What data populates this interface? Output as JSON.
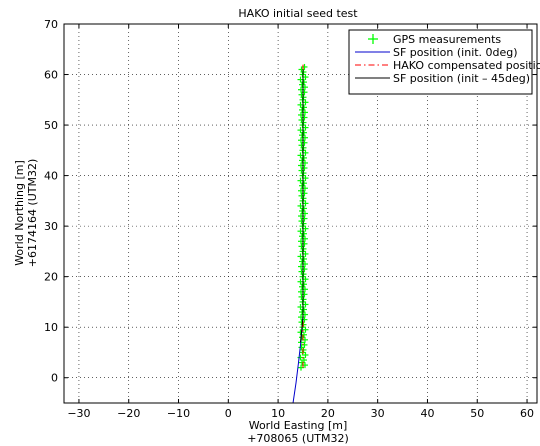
{
  "chart_data": {
    "type": "line",
    "title": "HAKO initial seed test",
    "xlabel": "World Easting [m]",
    "xlabel2": "+708065  (UTM32)",
    "ylabel": "World Northing [m]",
    "ylabel2": "+6174164  (UTM32)",
    "xlim": [
      -33,
      62
    ],
    "ylim": [
      -5,
      70
    ],
    "xticks": [
      -30,
      -20,
      -10,
      0,
      10,
      20,
      30,
      40,
      50,
      60
    ],
    "yticks": [
      0,
      10,
      20,
      30,
      40,
      50,
      60,
      70
    ],
    "grid": true,
    "legend_position": "top-right",
    "series": [
      {
        "name": "GPS measurements",
        "style": "markers-plus",
        "color": "#00ff00",
        "x": [
          14.6,
          15.4,
          14.8,
          15.2,
          14.5,
          15.5,
          14.9,
          15.1,
          14.7,
          15.3,
          14.6,
          15.4,
          14.8,
          15.2,
          14.5,
          15.5,
          14.9,
          15.1,
          14.7,
          15.3,
          14.6,
          15.4,
          14.8,
          15.2,
          14.5,
          15.5,
          14.9,
          15.1,
          14.7,
          15.3,
          14.6,
          15.4,
          14.8,
          15.2,
          14.5,
          15.5,
          14.9,
          15.1,
          14.7,
          15.3,
          14.6,
          15.4,
          14.8,
          15.2,
          14.5,
          15.5,
          14.9,
          15.1,
          14.7,
          15.3,
          14.6,
          15.4,
          14.8,
          15.2,
          14.5,
          15.5,
          14.9,
          15.1,
          14.7,
          15.3,
          14.6,
          15.4,
          14.8,
          15.2,
          14.5,
          15.5,
          14.9,
          15.1,
          14.7,
          15.3,
          14.6,
          15.4,
          14.8,
          15.2,
          14.5,
          15.5,
          14.9,
          15.1,
          14.7,
          15.3,
          14.6,
          15.4,
          14.8,
          15.2,
          14.5,
          15.5,
          14.9,
          15.1,
          14.7,
          15.3,
          14.6,
          15.4,
          14.8,
          15.2,
          14.5,
          15.5,
          14.9,
          15.1,
          14.7,
          15.3,
          14.6,
          15.4,
          14.8,
          15.2,
          14.5,
          15.5,
          14.9,
          15.1,
          14.7,
          15.3,
          14.6,
          15.4,
          14.8,
          15.2,
          14.5,
          15.5,
          14.9,
          15.1,
          14.7,
          15.3
        ],
        "y": [
          2.0,
          2.5,
          3.0,
          3.5,
          4.0,
          4.5,
          5.0,
          5.5,
          6.0,
          6.5,
          7.0,
          7.5,
          8.0,
          8.5,
          9.0,
          9.5,
          10.0,
          10.5,
          11.0,
          11.5,
          12.0,
          12.5,
          13.0,
          13.5,
          14.0,
          14.5,
          15.0,
          15.5,
          16.0,
          16.5,
          17.0,
          17.5,
          18.0,
          18.5,
          19.0,
          19.5,
          20.0,
          20.5,
          21.0,
          21.5,
          22.0,
          22.5,
          23.0,
          23.5,
          24.0,
          24.5,
          25.0,
          25.5,
          26.0,
          26.5,
          27.0,
          27.5,
          28.0,
          28.5,
          29.0,
          29.5,
          30.0,
          30.5,
          31.0,
          31.5,
          32.0,
          32.5,
          33.0,
          33.5,
          34.0,
          34.5,
          35.0,
          35.5,
          36.0,
          36.5,
          37.0,
          37.5,
          38.0,
          38.5,
          39.0,
          39.5,
          40.0,
          40.5,
          41.0,
          41.5,
          42.0,
          42.5,
          43.0,
          43.5,
          44.0,
          44.5,
          45.0,
          45.5,
          46.0,
          46.5,
          47.0,
          47.5,
          48.0,
          48.5,
          49.0,
          49.5,
          50.0,
          50.5,
          51.0,
          51.5,
          52.0,
          52.5,
          53.0,
          53.5,
          54.0,
          54.5,
          55.0,
          55.5,
          56.0,
          56.5,
          57.0,
          57.5,
          58.0,
          58.5,
          59.0,
          59.5,
          60.0,
          60.5,
          61.0,
          61.5
        ]
      },
      {
        "name": "SF position (init. 0deg)",
        "style": "line-solid",
        "color": "#0000cc",
        "x": [
          13.0,
          13.6,
          14.1,
          14.5,
          14.8,
          15.0,
          15.0,
          15.0,
          15.0,
          15.0,
          15.0,
          15.0
        ],
        "y": [
          -5.0,
          -1.0,
          3.0,
          6.5,
          9.5,
          12.0,
          20.0,
          30.0,
          40.0,
          50.0,
          58.0,
          61.0
        ]
      },
      {
        "name": "HAKO compensated position",
        "style": "line-dashdot",
        "color": "#ff0000",
        "x": [
          15.0,
          15.0,
          15.0,
          15.0,
          15.0,
          15.0
        ],
        "y": [
          2.0,
          12.0,
          25.0,
          40.0,
          55.0,
          62.0
        ]
      },
      {
        "name": "SF position (init – 45deg)",
        "style": "line-solid",
        "color": "#000000",
        "x": [
          14.5,
          14.8,
          15.0,
          15.0,
          15.0,
          15.0
        ],
        "y": [
          7.0,
          10.0,
          12.0,
          30.0,
          50.0,
          61.0
        ]
      }
    ]
  }
}
